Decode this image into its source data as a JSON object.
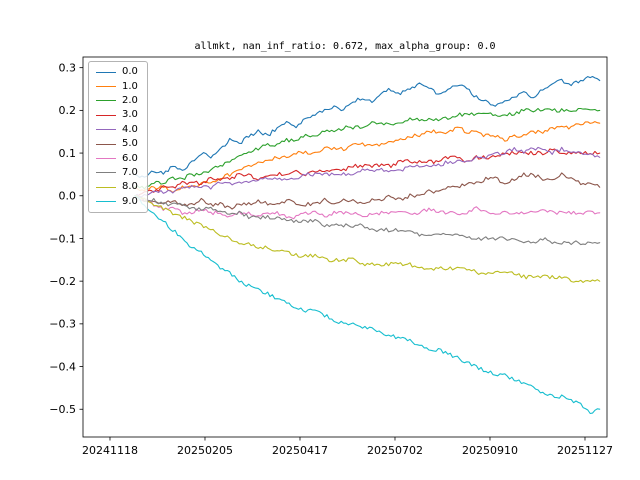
{
  "title": "allmkt, nan_inf_ratio: 0.672, max_alpha_group: 0.0",
  "chart_data": {
    "type": "line",
    "title": "allmkt, nan_inf_ratio: 0.672, max_alpha_group: 0.0",
    "xlabel": "",
    "ylabel": "",
    "grid": false,
    "legend_position": "upper left",
    "x_tick_labels": [
      "20241118",
      "20250205",
      "20250417",
      "20250702",
      "20250910",
      "20251127"
    ],
    "x_tick_positions": [
      0.0515,
      0.2328,
      0.4141,
      0.5954,
      0.7767,
      0.958
    ],
    "y_ticks": [
      0.3,
      0.2,
      0.1,
      0.0,
      -0.1,
      -0.2,
      -0.3,
      -0.4,
      -0.5
    ],
    "y_tick_labels": [
      "0.3",
      "0.2",
      "0.1",
      "0.0",
      "−0.1",
      "−0.2",
      "−0.3",
      "−0.4",
      "−0.5"
    ],
    "ylim": [
      -0.565,
      0.325
    ],
    "line_span": [
      0.099,
      0.986
    ],
    "series": [
      {
        "name": "0.0",
        "color": "#1f77b4",
        "values": [
          0.05,
          0.04,
          0.06,
          0.05,
          0.07,
          0.06,
          0.08,
          0.1,
          0.09,
          0.11,
          0.13,
          0.12,
          0.14,
          0.15,
          0.14,
          0.16,
          0.17,
          0.16,
          0.18,
          0.19,
          0.2,
          0.21,
          0.2,
          0.22,
          0.23,
          0.22,
          0.24,
          0.25,
          0.24,
          0.25,
          0.26,
          0.25,
          0.24,
          0.25,
          0.26,
          0.25,
          0.23,
          0.22,
          0.21,
          0.22,
          0.23,
          0.24,
          0.23,
          0.25,
          0.26,
          0.27,
          0.26,
          0.27,
          0.28,
          0.27
        ]
      },
      {
        "name": "1.0",
        "color": "#ff7f0e",
        "values": [
          0.02,
          0.01,
          0.02,
          0.02,
          0.01,
          0.02,
          0.02,
          0.03,
          0.03,
          0.04,
          0.05,
          0.06,
          0.07,
          0.08,
          0.08,
          0.09,
          0.09,
          0.1,
          0.1,
          0.1,
          0.11,
          0.11,
          0.11,
          0.12,
          0.12,
          0.12,
          0.12,
          0.13,
          0.13,
          0.14,
          0.14,
          0.15,
          0.15,
          0.15,
          0.16,
          0.15,
          0.15,
          0.14,
          0.14,
          0.13,
          0.14,
          0.14,
          0.15,
          0.15,
          0.16,
          0.16,
          0.16,
          0.17,
          0.17,
          0.17
        ]
      },
      {
        "name": "2.0",
        "color": "#2ca02c",
        "values": [
          0.02,
          0.02,
          0.03,
          0.03,
          0.04,
          0.04,
          0.05,
          0.05,
          0.06,
          0.07,
          0.08,
          0.09,
          0.1,
          0.11,
          0.12,
          0.12,
          0.13,
          0.13,
          0.14,
          0.14,
          0.15,
          0.15,
          0.16,
          0.16,
          0.16,
          0.17,
          0.17,
          0.17,
          0.17,
          0.18,
          0.18,
          0.18,
          0.18,
          0.18,
          0.19,
          0.19,
          0.19,
          0.19,
          0.19,
          0.19,
          0.19,
          0.2,
          0.2,
          0.2,
          0.2,
          0.2,
          0.2,
          0.2,
          0.2,
          0.2
        ]
      },
      {
        "name": "3.0",
        "color": "#d62728",
        "values": [
          0.0,
          0.01,
          0.01,
          0.02,
          0.02,
          0.03,
          0.03,
          0.03,
          0.04,
          0.04,
          0.04,
          0.05,
          0.05,
          0.04,
          0.05,
          0.05,
          0.05,
          0.06,
          0.05,
          0.06,
          0.06,
          0.06,
          0.06,
          0.07,
          0.07,
          0.07,
          0.07,
          0.07,
          0.08,
          0.08,
          0.08,
          0.08,
          0.08,
          0.09,
          0.09,
          0.08,
          0.09,
          0.09,
          0.09,
          0.1,
          0.1,
          0.1,
          0.1,
          0.1,
          0.11,
          0.1,
          0.1,
          0.1,
          0.1,
          0.1
        ]
      },
      {
        "name": "4.0",
        "color": "#9467bd",
        "values": [
          0.0,
          0.0,
          0.01,
          0.01,
          0.01,
          0.02,
          0.02,
          0.02,
          0.02,
          0.03,
          0.03,
          0.03,
          0.03,
          0.04,
          0.04,
          0.04,
          0.04,
          0.04,
          0.05,
          0.05,
          0.05,
          0.05,
          0.05,
          0.05,
          0.06,
          0.06,
          0.06,
          0.06,
          0.06,
          0.07,
          0.07,
          0.07,
          0.07,
          0.08,
          0.08,
          0.08,
          0.09,
          0.09,
          0.1,
          0.1,
          0.11,
          0.1,
          0.11,
          0.11,
          0.1,
          0.11,
          0.1,
          0.1,
          0.1,
          0.09
        ]
      },
      {
        "name": "5.0",
        "color": "#8c564b",
        "values": [
          0.0,
          -0.01,
          -0.01,
          -0.02,
          -0.01,
          -0.02,
          -0.02,
          -0.01,
          -0.02,
          -0.02,
          -0.03,
          -0.02,
          -0.02,
          -0.01,
          -0.02,
          -0.02,
          -0.01,
          -0.02,
          -0.02,
          -0.02,
          -0.01,
          -0.02,
          -0.01,
          -0.01,
          -0.02,
          -0.01,
          -0.01,
          0.0,
          -0.01,
          0.0,
          0.0,
          0.01,
          0.01,
          0.02,
          0.02,
          0.03,
          0.03,
          0.04,
          0.04,
          0.03,
          0.04,
          0.05,
          0.05,
          0.04,
          0.04,
          0.05,
          0.04,
          0.03,
          0.03,
          0.02
        ]
      },
      {
        "name": "6.0",
        "color": "#e377c2",
        "values": [
          0.0,
          -0.01,
          -0.02,
          -0.03,
          -0.03,
          -0.04,
          -0.04,
          -0.03,
          -0.04,
          -0.04,
          -0.05,
          -0.04,
          -0.04,
          -0.05,
          -0.04,
          -0.04,
          -0.05,
          -0.05,
          -0.04,
          -0.04,
          -0.05,
          -0.04,
          -0.04,
          -0.04,
          -0.05,
          -0.04,
          -0.04,
          -0.04,
          -0.04,
          -0.04,
          -0.04,
          -0.03,
          -0.04,
          -0.04,
          -0.04,
          -0.04,
          -0.03,
          -0.04,
          -0.04,
          -0.04,
          -0.04,
          -0.04,
          -0.04,
          -0.03,
          -0.04,
          -0.04,
          -0.04,
          -0.04,
          -0.04,
          -0.04
        ]
      },
      {
        "name": "7.0",
        "color": "#7f7f7f",
        "values": [
          0.0,
          -0.01,
          -0.01,
          -0.02,
          -0.02,
          -0.02,
          -0.03,
          -0.03,
          -0.03,
          -0.04,
          -0.04,
          -0.04,
          -0.05,
          -0.05,
          -0.05,
          -0.05,
          -0.06,
          -0.06,
          -0.06,
          -0.06,
          -0.07,
          -0.07,
          -0.07,
          -0.07,
          -0.07,
          -0.08,
          -0.08,
          -0.08,
          -0.08,
          -0.08,
          -0.09,
          -0.09,
          -0.09,
          -0.09,
          -0.09,
          -0.1,
          -0.1,
          -0.1,
          -0.1,
          -0.1,
          -0.1,
          -0.11,
          -0.11,
          -0.1,
          -0.11,
          -0.11,
          -0.11,
          -0.11,
          -0.11,
          -0.11
        ]
      },
      {
        "name": "8.0",
        "color": "#bcbd22",
        "values": [
          0.0,
          -0.01,
          -0.02,
          -0.03,
          -0.04,
          -0.05,
          -0.06,
          -0.07,
          -0.08,
          -0.09,
          -0.1,
          -0.11,
          -0.11,
          -0.12,
          -0.12,
          -0.13,
          -0.13,
          -0.14,
          -0.14,
          -0.14,
          -0.15,
          -0.15,
          -0.15,
          -0.15,
          -0.16,
          -0.16,
          -0.16,
          -0.16,
          -0.16,
          -0.16,
          -0.17,
          -0.17,
          -0.17,
          -0.17,
          -0.17,
          -0.17,
          -0.18,
          -0.18,
          -0.18,
          -0.18,
          -0.18,
          -0.19,
          -0.19,
          -0.19,
          -0.19,
          -0.19,
          -0.2,
          -0.2,
          -0.2,
          -0.2
        ]
      },
      {
        "name": "9.0",
        "color": "#17becf",
        "values": [
          0.0,
          -0.02,
          -0.04,
          -0.06,
          -0.08,
          -0.1,
          -0.12,
          -0.13,
          -0.15,
          -0.17,
          -0.18,
          -0.2,
          -0.21,
          -0.22,
          -0.23,
          -0.24,
          -0.25,
          -0.26,
          -0.27,
          -0.27,
          -0.28,
          -0.29,
          -0.3,
          -0.3,
          -0.31,
          -0.31,
          -0.32,
          -0.33,
          -0.33,
          -0.34,
          -0.35,
          -0.36,
          -0.36,
          -0.37,
          -0.38,
          -0.39,
          -0.4,
          -0.41,
          -0.42,
          -0.42,
          -0.43,
          -0.44,
          -0.45,
          -0.46,
          -0.47,
          -0.47,
          -0.48,
          -0.49,
          -0.51,
          -0.5
        ]
      }
    ]
  }
}
